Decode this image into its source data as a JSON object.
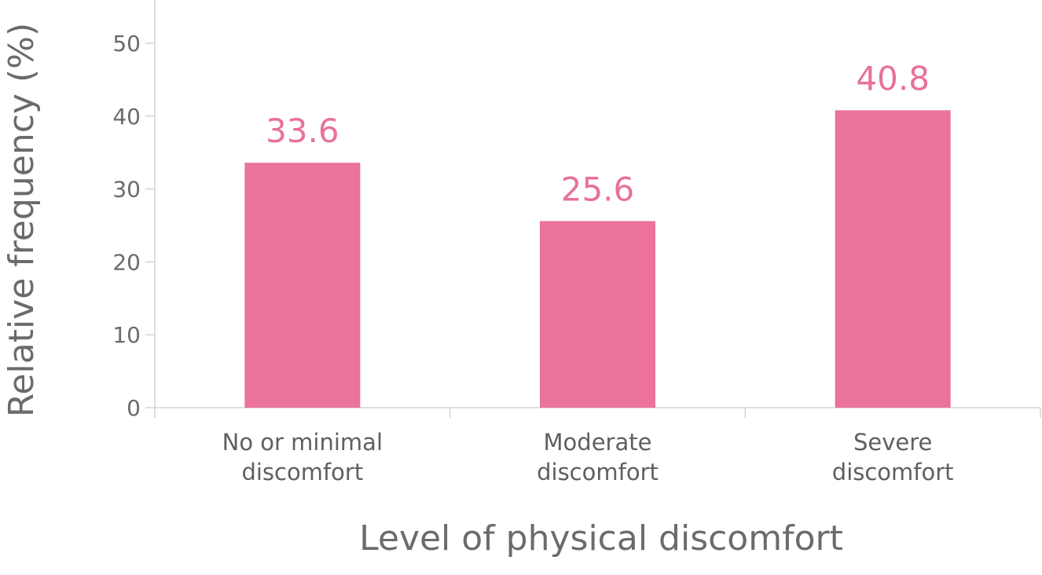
{
  "chart_data": {
    "type": "bar",
    "categories": [
      [
        "No or minimal",
        "discomfort"
      ],
      [
        "Moderate",
        "discomfort"
      ],
      [
        "Severe",
        "discomfort"
      ]
    ],
    "values": [
      33.6,
      25.6,
      40.8
    ],
    "data_labels": [
      "33.6",
      "25.6",
      "40.8"
    ],
    "xlabel": "Level of physical discomfort",
    "ylabel": "Relative frequency (%)",
    "ylim": [
      0,
      50
    ],
    "yticks": [
      0,
      10,
      20,
      30,
      40,
      50
    ],
    "ytick_labels": [
      "0",
      "10",
      "20",
      "30",
      "40",
      "50"
    ],
    "grid": false,
    "colors": {
      "bar": "#ea729c",
      "data_label": "#e8719b",
      "axis": "#d4d4d4",
      "text": "#6b6b6b"
    }
  }
}
